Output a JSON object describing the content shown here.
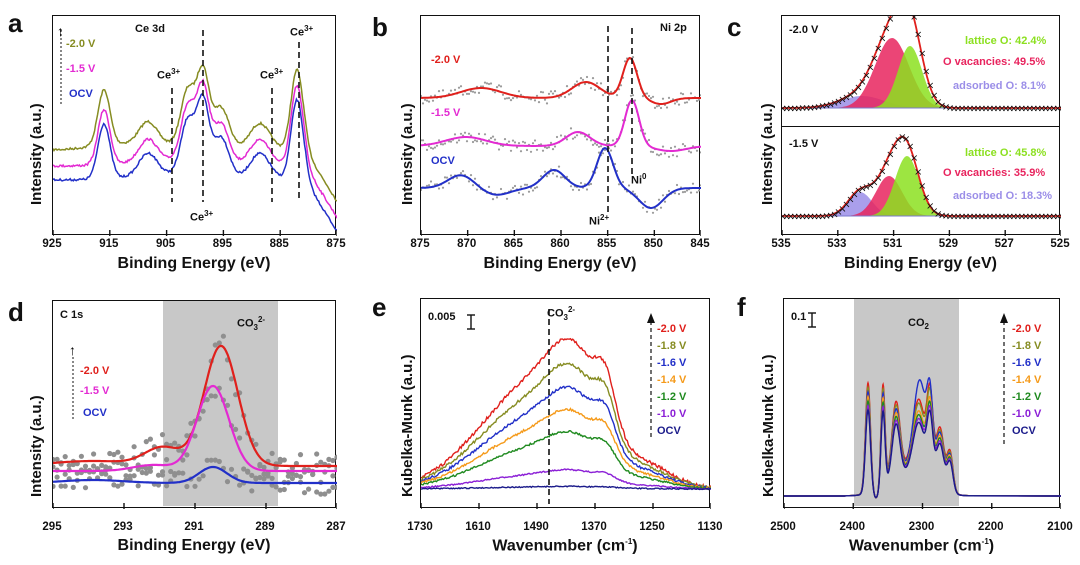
{
  "colors": {
    "red": "#e0201c",
    "olive": "#868c22",
    "magenta": "#e32ad2",
    "blue": "#2230c8",
    "orange": "#f59a1a",
    "green": "#1f8a1f",
    "purple": "#8b1fd6",
    "navy": "#1a1a8a",
    "gray": "#9a9a9a",
    "shade": "#c8c8c8",
    "lattice": "#8ce020",
    "vacancy": "#e8245e",
    "adsorbed": "#9b8ee8"
  },
  "panels": {
    "a": {
      "letter": "a",
      "title": "Ce 3d",
      "ylabel": "Intensity (a.u.)",
      "xlabel": "Binding Energy (eV)",
      "xticks": [
        "925",
        "915",
        "905",
        "895",
        "885",
        "875"
      ],
      "legend": [
        "-2.0 V",
        "-1.5 V",
        "OCV"
      ],
      "annotations": [
        "Ce",
        "Ce",
        "Ce",
        "Ce",
        "3+",
        "3+",
        "3+",
        "3+"
      ],
      "arrow_icon": "dotted-up-arrow-icon"
    },
    "b": {
      "letter": "b",
      "title": "Ni 2p",
      "ylabel": "Intensity (a.u.)",
      "xlabel": "Binding Energy (eV)",
      "xticks": [
        "875",
        "870",
        "865",
        "860",
        "855",
        "850",
        "845"
      ],
      "legend": [
        "-2.0 V",
        "-1.5 V",
        "OCV"
      ],
      "ni0": "Ni",
      "ni0_sup": "0",
      "ni2": "Ni",
      "ni2_sup": "2+"
    },
    "c": {
      "letter": "c",
      "ylabel": "Intensity (a.u.)",
      "xlabel": "Binding Energy (eV)",
      "xticks": [
        "535",
        "533",
        "531",
        "529",
        "527",
        "525"
      ],
      "top": {
        "voltage": "-2.0 V",
        "lattice": "lattice O: 42.4%",
        "vacancies": "O vacancies: 49.5%",
        "adsorbed": "adsorbed O: 8.1%"
      },
      "bottom": {
        "voltage": "-1.5 V",
        "lattice": "lattice O: 45.8%",
        "vacancies": "O vacancies: 35.9%",
        "adsorbed": "adsorbed O: 18.3%"
      }
    },
    "d": {
      "letter": "d",
      "title": "C 1s",
      "species": "CO",
      "species_sub": "3",
      "species_sup": "2-",
      "ylabel": "Intensity (a.u.)",
      "xlabel": "Binding Energy (eV)",
      "xticks": [
        "295",
        "293",
        "291",
        "289",
        "287"
      ],
      "legend": [
        "-2.0 V",
        "-1.5 V",
        "OCV"
      ]
    },
    "e": {
      "letter": "e",
      "scale": "0.005",
      "species": "CO",
      "species_sub": "3",
      "species_sup": "2-",
      "ylabel": "Kubelka-Munk (a.u.)",
      "xlabel": "Wavenumber (cm",
      "xlabel_sup": "-1",
      "xlabel_end": ")",
      "xticks": [
        "1730",
        "1610",
        "1490",
        "1370",
        "1250",
        "1130"
      ],
      "legend": [
        "-2.0 V",
        "-1.8 V",
        "-1.6 V",
        "-1.4 V",
        "-1.2 V",
        "-1.0 V",
        "OCV"
      ]
    },
    "f": {
      "letter": "f",
      "scale": "0.1",
      "species": "CO",
      "species_sub": "2",
      "ylabel": "Kubelka-Munk (a.u.)",
      "xlabel": "Wavenumber (cm",
      "xlabel_sup": "-1",
      "xlabel_end": ")",
      "xticks": [
        "2500",
        "2400",
        "2300",
        "2200",
        "2100"
      ],
      "legend": [
        "-2.0 V",
        "-1.8 V",
        "-1.6 V",
        "-1.4 V",
        "-1.2 V",
        "-1.0 V",
        "OCV"
      ]
    }
  }
}
